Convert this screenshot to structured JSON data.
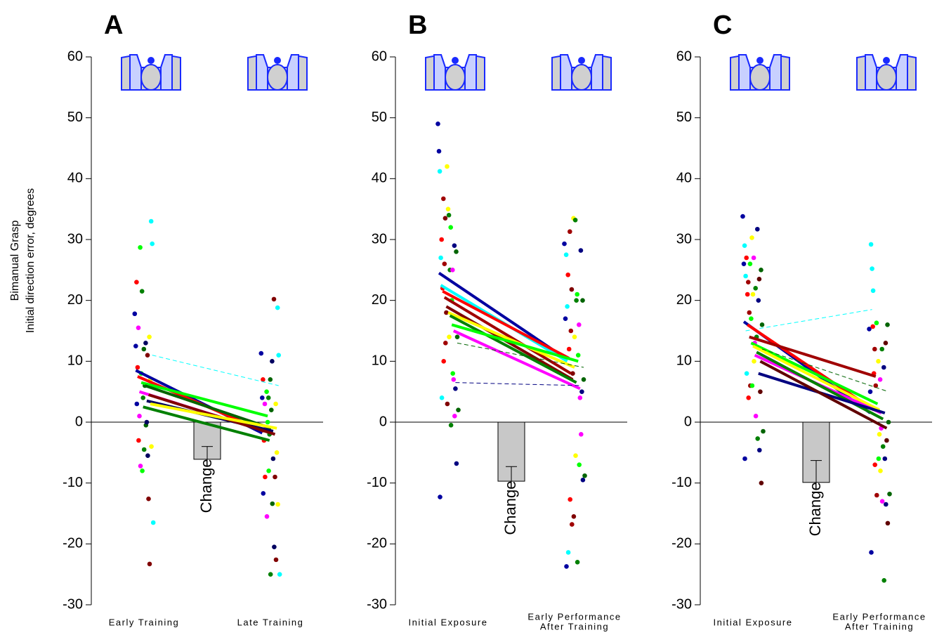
{
  "chart_data": [
    {
      "type": "paired",
      "panel": "A",
      "ylabel": [
        "Bimanual Grasp",
        "Initial direction error, degrees"
      ],
      "categories": [
        [
          "Early Training"
        ],
        [
          "Late Training"
        ]
      ],
      "ylim": [
        -30,
        60
      ],
      "yticks": [
        -30,
        -20,
        -10,
        0,
        10,
        20,
        30,
        40,
        50,
        60
      ],
      "change": {
        "label": "Change",
        "value": -6.1,
        "error": 2.1,
        "color": "#c8c8c8"
      },
      "series": [
        {
          "color": "#0000a0",
          "values": [
            8.5,
            -1.8
          ],
          "points": [
            [
              17.8,
              12.5,
              3
            ],
            [
              11.3,
              4,
              -11.7
            ]
          ]
        },
        {
          "color": "#ff0000",
          "values": [
            7.5,
            -1.5
          ],
          "points": [
            [
              23,
              9,
              -3
            ],
            [
              7,
              -3,
              -9
            ]
          ]
        },
        {
          "color": "#ff00ff",
          "values": [
            5,
            -1.5
          ],
          "points": [
            [
              15.5,
              1,
              -7.2
            ],
            [
              3,
              -1,
              -15.5
            ]
          ]
        },
        {
          "color": "#00ff00",
          "values": [
            6.5,
            1
          ],
          "points": [
            [
              28.7,
              8,
              -8
            ],
            [
              5,
              0,
              -8
            ]
          ]
        },
        {
          "color": "#008000",
          "values": [
            2.5,
            -3
          ],
          "points": [
            [
              21.5,
              4,
              -4.5
            ],
            [
              4,
              -2,
              -25
            ]
          ]
        },
        {
          "color": "#006400",
          "values": [
            6,
            -1
          ],
          "points": [
            [
              12,
              6,
              -0.5
            ],
            [
              7,
              2,
              -13.4
            ]
          ]
        },
        {
          "color": "#000060",
          "values": [
            3.5,
            -1.5
          ],
          "points": [
            [
              13,
              0,
              -5.5
            ],
            [
              10,
              -6,
              -20.5
            ]
          ]
        },
        {
          "color": "#800000",
          "values": [
            4.5,
            -2
          ],
          "points": [
            [
              11,
              -12.6,
              -23.3
            ],
            [
              20.2,
              -9,
              -22.6
            ]
          ]
        },
        {
          "color": "#ffff00",
          "values": [
            3,
            -1
          ],
          "points": [
            [
              14,
              7,
              -4
            ],
            [
              3,
              -5,
              -13.5
            ]
          ]
        },
        {
          "color": "#00ffff",
          "values": [
            11,
            6
          ],
          "dashed": true,
          "points": [
            [
              33,
              29.3,
              -16.5
            ],
            [
              18.8,
              11,
              -25
            ]
          ]
        }
      ]
    },
    {
      "type": "paired",
      "panel": "B",
      "categories": [
        [
          "Initial Exposure"
        ],
        [
          "Early Performance",
          "After Training"
        ]
      ],
      "ylim": [
        -30,
        60
      ],
      "yticks": [
        -30,
        -20,
        -10,
        0,
        10,
        20,
        30,
        40,
        50,
        60
      ],
      "change": {
        "label": "Change",
        "value": -9.7,
        "error": 2.4,
        "color": "#c8c8c8"
      },
      "series": [
        {
          "color": "#0000a0",
          "values": [
            24.5,
            10.5
          ],
          "points": [
            [
              49,
              44.5,
              -12.3
            ],
            [
              29.3,
              17,
              -23.7
            ]
          ]
        },
        {
          "color": "#00ffff",
          "values": [
            22.5,
            10
          ],
          "points": [
            [
              41.2,
              27,
              4
            ],
            [
              27.5,
              19,
              -21.4
            ]
          ]
        },
        {
          "color": "#ff0000",
          "values": [
            21.5,
            10.5
          ],
          "points": [
            [
              30,
              22,
              10
            ],
            [
              24.2,
              12,
              -12.7
            ]
          ]
        },
        {
          "color": "#a00000",
          "values": [
            20.5,
            8
          ],
          "points": [
            [
              36.7,
              26,
              13
            ],
            [
              31.3,
              15,
              -16.8
            ]
          ]
        },
        {
          "color": "#800000",
          "values": [
            19,
            7
          ],
          "points": [
            [
              33.5,
              18,
              3
            ],
            [
              21.8,
              8,
              -15.5
            ]
          ]
        },
        {
          "color": "#ffff00",
          "values": [
            18,
            9
          ],
          "points": [
            [
              42,
              35,
              14
            ],
            [
              33.5,
              14,
              -5.5
            ]
          ]
        },
        {
          "color": "#008000",
          "values": [
            17.5,
            6.5
          ],
          "points": [
            [
              34,
              25,
              -0.5
            ],
            [
              33.2,
              20,
              -23
            ]
          ]
        },
        {
          "color": "#00ff00",
          "values": [
            16,
            10
          ],
          "points": [
            [
              32,
              20,
              8
            ],
            [
              21,
              11,
              -7
            ]
          ]
        },
        {
          "color": "#ff00ff",
          "values": [
            15,
            5.5
          ],
          "points": [
            [
              25,
              7,
              1
            ],
            [
              16,
              4,
              -2
            ]
          ]
        },
        {
          "color": "#000080",
          "values": [
            6.5,
            6
          ],
          "dashed": true,
          "points": [
            [
              29,
              5.5,
              -6.8
            ],
            [
              28.2,
              5,
              -9.5
            ]
          ]
        },
        {
          "color": "#006400",
          "values": [
            13,
            9
          ],
          "dashed": true,
          "points": [
            [
              28,
              14,
              2
            ],
            [
              20,
              7,
              -8.8
            ]
          ]
        }
      ]
    },
    {
      "type": "paired",
      "panel": "C",
      "categories": [
        [
          "Initial Exposure"
        ],
        [
          "Early Performance",
          "After Training"
        ]
      ],
      "ylim": [
        -30,
        60
      ],
      "yticks": [
        -30,
        -20,
        -10,
        0,
        10,
        20,
        30,
        40,
        50,
        60
      ],
      "change": {
        "label": "Change",
        "value": -9.9,
        "error": 3.6,
        "color": "#c8c8c8"
      },
      "series": [
        {
          "color": "#0000a0",
          "values": [
            16.5,
            1.5
          ],
          "points": [
            [
              33.8,
              26,
              -6
            ],
            [
              15.3,
              5,
              -21.4
            ]
          ]
        },
        {
          "color": "#00ffff",
          "values": [
            15,
            18.5
          ],
          "dashed": true,
          "points": [
            [
              29,
              24,
              8
            ],
            [
              29.2,
              25.2,
              21.6
            ]
          ]
        },
        {
          "color": "#ff0000",
          "values": [
            16,
            2
          ],
          "points": [
            [
              27,
              21,
              4
            ],
            [
              15.7,
              8,
              -7
            ]
          ]
        },
        {
          "color": "#a00000",
          "values": [
            14,
            7.5
          ],
          "points": [
            [
              23,
              18,
              6
            ],
            [
              12,
              6,
              -12
            ]
          ]
        },
        {
          "color": "#00ff00",
          "values": [
            13,
            3
          ],
          "points": [
            [
              26,
              17,
              6
            ],
            [
              16.3,
              2,
              -6
            ]
          ]
        },
        {
          "color": "#ffff00",
          "values": [
            12.5,
            2
          ],
          "points": [
            [
              30.3,
              21,
              10
            ],
            [
              10,
              -2,
              -8
            ]
          ]
        },
        {
          "color": "#ff00ff",
          "values": [
            11,
            1.5
          ],
          "points": [
            [
              27,
              13,
              1
            ],
            [
              7,
              -1,
              -13
            ]
          ]
        },
        {
          "color": "#008000",
          "values": [
            11.5,
            0.5
          ],
          "points": [
            [
              22,
              14,
              -2.7
            ],
            [
              12,
              -4,
              -26
            ]
          ]
        },
        {
          "color": "#000080",
          "values": [
            8,
            1.5
          ],
          "points": [
            [
              31.7,
              20,
              -4.6
            ],
            [
              9,
              -6,
              -13.5
            ]
          ]
        },
        {
          "color": "#600000",
          "values": [
            10,
            -1
          ],
          "points": [
            [
              23.5,
              5,
              -10
            ],
            [
              13,
              -3,
              -16.6
            ]
          ]
        },
        {
          "color": "#006400",
          "values": [
            12,
            5
          ],
          "dashed": true,
          "points": [
            [
              25,
              16,
              -1.5
            ],
            [
              16,
              0,
              -11.8
            ]
          ]
        }
      ]
    }
  ]
}
